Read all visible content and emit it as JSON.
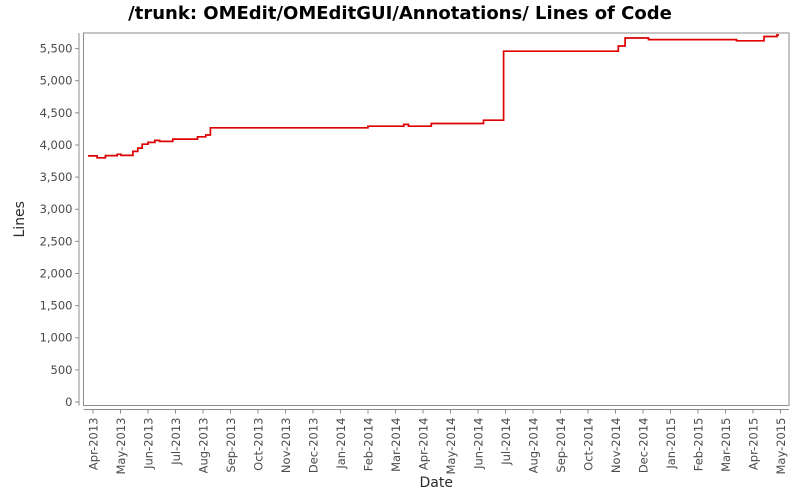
{
  "window": {
    "title": "/trunk: OMEdit/OMEditGUI/Annotations/ Lines of Code"
  },
  "chart_data": {
    "type": "line",
    "subtype": "step-after",
    "title": "/trunk: OMEdit/OMEditGUI/Annotations/ Lines of Code",
    "xlabel": "Date",
    "ylabel": "Lines",
    "grid": false,
    "legend_position": "none",
    "colors": {
      "series": "#de0000",
      "axis": "#8c8c8c",
      "tick_label": "#4a4a4a",
      "axis_title": "#2b2b2b",
      "background": "#ffffff"
    },
    "x_categories": [
      "Apr-2013",
      "May-2013",
      "Jun-2013",
      "Jul-2013",
      "Aug-2013",
      "Sep-2013",
      "Oct-2013",
      "Nov-2013",
      "Dec-2013",
      "Jan-2014",
      "Feb-2014",
      "Mar-2014",
      "Apr-2014",
      "May-2014",
      "Jun-2014",
      "Jul-2014",
      "Aug-2014",
      "Sep-2014",
      "Oct-2014",
      "Nov-2014",
      "Dec-2014",
      "Jan-2015",
      "Feb-2015",
      "Mar-2015",
      "Apr-2015",
      "May-2015"
    ],
    "y_tick_values": [
      0,
      500,
      1000,
      1500,
      2000,
      2500,
      3000,
      3500,
      4000,
      4500,
      5000,
      5500
    ],
    "y_tick_labels": [
      "0",
      "500",
      "1,000",
      "1,500",
      "2,000",
      "2,500",
      "3,000",
      "3,500",
      "4,000",
      "4,500",
      "5,000",
      "5,500"
    ],
    "ylim": [
      0,
      5800
    ],
    "series": [
      {
        "name": "Lines of Code",
        "points": [
          {
            "x": -0.18,
            "date": "2013-03-25",
            "y": 3830
          },
          {
            "x": 0.15,
            "date": "2013-04-05",
            "y": 3800
          },
          {
            "x": 0.45,
            "date": "2013-04-14",
            "y": 3835
          },
          {
            "x": 0.88,
            "date": "2013-04-27",
            "y": 3855
          },
          {
            "x": 1.02,
            "date": "2013-05-01",
            "y": 3838
          },
          {
            "x": 1.45,
            "date": "2013-05-14",
            "y": 3900
          },
          {
            "x": 1.63,
            "date": "2013-05-19",
            "y": 3952
          },
          {
            "x": 1.79,
            "date": "2013-05-24",
            "y": 4012
          },
          {
            "x": 2.0,
            "date": "2013-06-01",
            "y": 4040
          },
          {
            "x": 2.25,
            "date": "2013-06-08",
            "y": 4072
          },
          {
            "x": 2.42,
            "date": "2013-06-13",
            "y": 4055
          },
          {
            "x": 2.9,
            "date": "2013-06-28",
            "y": 4092
          },
          {
            "x": 3.8,
            "date": "2013-07-25",
            "y": 4128
          },
          {
            "x": 4.1,
            "date": "2013-08-04",
            "y": 4155
          },
          {
            "x": 4.27,
            "date": "2013-08-09",
            "y": 4268
          },
          {
            "x": 10.0,
            "date": "2014-02-01",
            "y": 4293
          },
          {
            "x": 11.3,
            "date": "2014-03-10",
            "y": 4320
          },
          {
            "x": 11.47,
            "date": "2014-03-15",
            "y": 4292
          },
          {
            "x": 12.3,
            "date": "2014-04-10",
            "y": 4335
          },
          {
            "x": 14.2,
            "date": "2014-06-07",
            "y": 4385
          },
          {
            "x": 14.93,
            "date": "2014-06-29",
            "y": 5460
          },
          {
            "x": 19.1,
            "date": "2014-11-04",
            "y": 5540
          },
          {
            "x": 19.35,
            "date": "2014-11-11",
            "y": 5665
          },
          {
            "x": 20.2,
            "date": "2014-12-07",
            "y": 5640
          },
          {
            "x": 23.4,
            "date": "2015-03-13",
            "y": 5622
          },
          {
            "x": 24.4,
            "date": "2015-04-13",
            "y": 5688
          },
          {
            "x": 24.87,
            "date": "2015-04-27",
            "y": 5712
          }
        ]
      }
    ]
  }
}
